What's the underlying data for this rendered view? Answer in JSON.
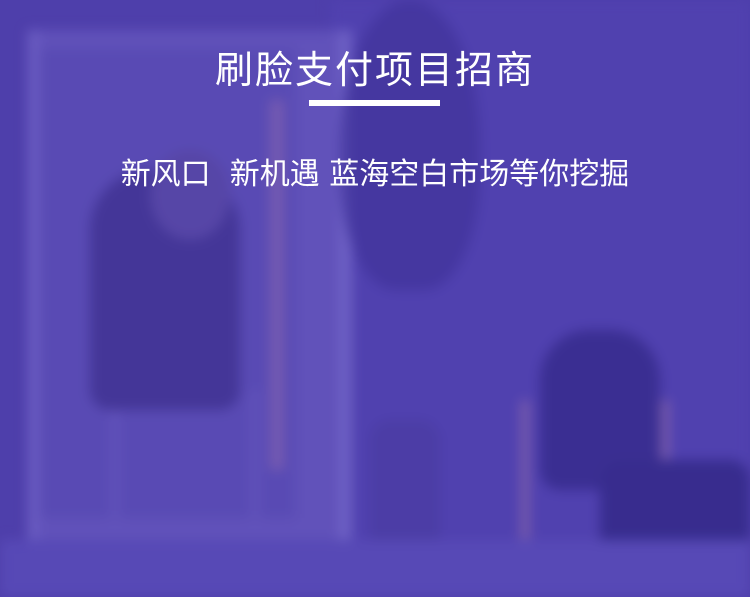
{
  "banner": {
    "title": "刷脸支付项目招商",
    "subtitle": "新风口  新机遇 蓝海空白市场等你挖掘",
    "colors": {
      "background": "#4e3fa6",
      "text": "#ffffff",
      "underline": "#ffffff"
    }
  }
}
